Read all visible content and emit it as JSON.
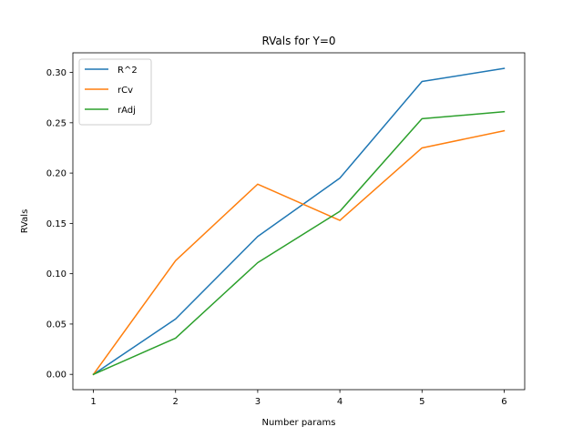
{
  "chart_data": {
    "type": "line",
    "title": "RVals for Y=0",
    "xlabel": "Number params",
    "ylabel": "RVals",
    "x": [
      1,
      2,
      3,
      4,
      5,
      6
    ],
    "xlim": [
      0.75,
      6.25
    ],
    "ylim": [
      -0.0152,
      0.3195
    ],
    "xticks": [
      1,
      2,
      3,
      4,
      5,
      6
    ],
    "yticks": [
      0.0,
      0.05,
      0.1,
      0.15,
      0.2,
      0.25,
      0.3
    ],
    "ytick_labels": [
      "0.00",
      "0.05",
      "0.10",
      "0.15",
      "0.20",
      "0.25",
      "0.30"
    ],
    "grid": false,
    "legend_position": "top-left",
    "series": [
      {
        "name": "R^2",
        "color": "#1f77b4",
        "values": [
          0.0,
          0.055,
          0.137,
          0.195,
          0.291,
          0.304
        ]
      },
      {
        "name": "rCv",
        "color": "#ff7f0e",
        "values": [
          0.0,
          0.113,
          0.189,
          0.153,
          0.225,
          0.242
        ]
      },
      {
        "name": "rAdj",
        "color": "#2ca02c",
        "values": [
          0.0,
          0.036,
          0.111,
          0.162,
          0.254,
          0.261
        ]
      }
    ]
  }
}
